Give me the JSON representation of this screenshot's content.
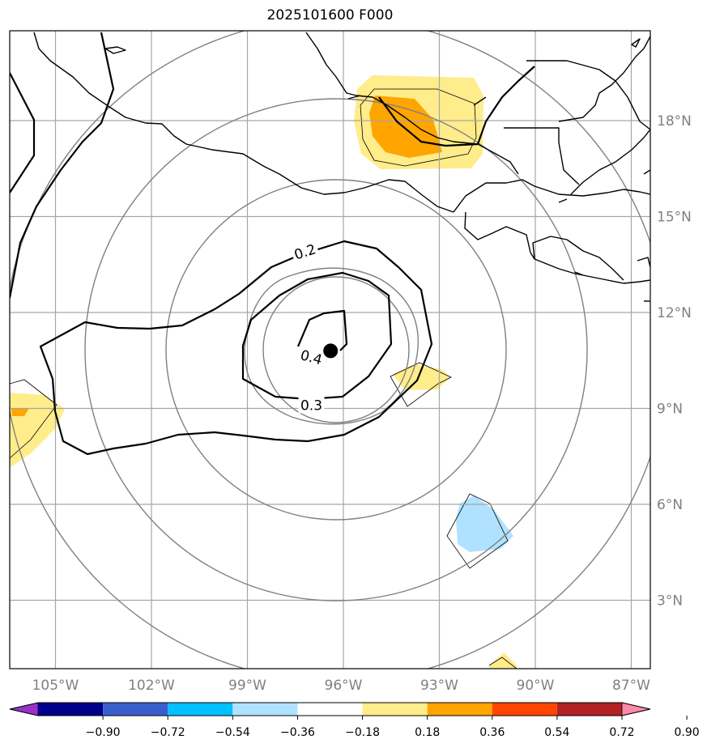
{
  "title": "2025101600 F000",
  "map": {
    "projection": "lat-lon",
    "lon_ticks": [
      {
        "lon": -105,
        "label": "105°W"
      },
      {
        "lon": -102,
        "label": "102°W"
      },
      {
        "lon": -99,
        "label": "99°W"
      },
      {
        "lon": -96,
        "label": "96°W"
      },
      {
        "lon": -93,
        "label": "93°W"
      },
      {
        "lon": -90,
        "label": "90°W"
      },
      {
        "lon": -87,
        "label": "87°W"
      }
    ],
    "lat_ticks": [
      {
        "lat": 18,
        "label": "18°N"
      },
      {
        "lat": 15,
        "label": "15°N"
      },
      {
        "lat": 12,
        "label": "12°N"
      },
      {
        "lat": 9,
        "label": "9°N"
      },
      {
        "lat": 6,
        "label": "6°N"
      },
      {
        "lat": 3,
        "label": "3°N"
      }
    ],
    "center_marker": {
      "lon": -96.4,
      "lat": 10.8
    },
    "contour_labels": [
      {
        "text": "0.2",
        "lon": -97.2,
        "lat": 13.9,
        "rotate": -18
      },
      {
        "text": "0.4",
        "lon": -97.0,
        "lat": 10.6,
        "rotate": 15
      },
      {
        "text": "0.3",
        "lon": -97.0,
        "lat": 9.1,
        "rotate": 0
      }
    ]
  },
  "colorbar": {
    "colors": [
      "#9932cc",
      "#00008b",
      "#3a5fcd",
      "#00bfff",
      "#b0e2ff",
      "#ffffff",
      "#ffec8b",
      "#ffa500",
      "#ff4500",
      "#b22222",
      "#ff88aa"
    ],
    "labels": [
      "−0.90",
      "−0.72",
      "−0.54",
      "−0.36",
      "−0.18",
      "0.18",
      "0.36",
      "0.54",
      "0.72",
      "0.90"
    ]
  }
}
